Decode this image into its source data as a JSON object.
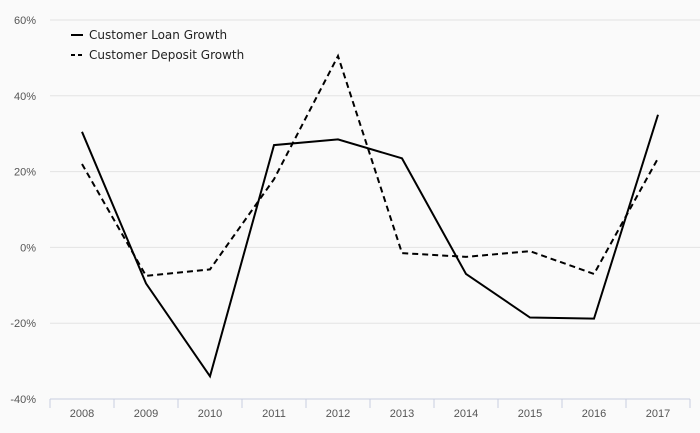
{
  "chart_data": {
    "type": "line",
    "categories": [
      "2008",
      "2009",
      "2010",
      "2011",
      "2012",
      "2013",
      "2014",
      "2015",
      "2016",
      "2017"
    ],
    "ylim": [
      -40,
      60
    ],
    "yticks": [
      -40,
      -20,
      0,
      20,
      40,
      60
    ],
    "ytick_suffix": "%",
    "grid": true,
    "legend_position": "top-left",
    "xlabel": "",
    "ylabel": "",
    "title": "",
    "series": [
      {
        "name": "Customer Loan Growth",
        "style": "solid",
        "color": "#000000",
        "values": [
          30.5,
          -9.5,
          -34,
          27,
          28.5,
          23.5,
          -7,
          -18.5,
          -18.8,
          35
        ]
      },
      {
        "name": "Customer Deposit Growth",
        "style": "dashed",
        "color": "#000000",
        "values": [
          22,
          -7.5,
          -5.8,
          18,
          50.5,
          -1.5,
          -2.5,
          -1,
          -7,
          23.5
        ]
      }
    ]
  }
}
